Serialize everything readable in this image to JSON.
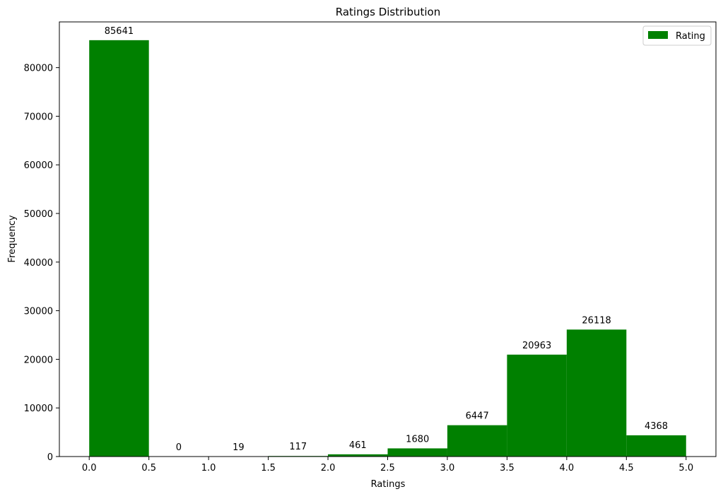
{
  "chart_data": {
    "type": "bar",
    "title": "Ratings Distribution",
    "xlabel": "Ratings",
    "ylabel": "Frequency",
    "bins": [
      {
        "start": 0.0,
        "end": 0.5,
        "value": 85641,
        "label": "85641"
      },
      {
        "start": 0.5,
        "end": 1.0,
        "value": 0,
        "label": "0"
      },
      {
        "start": 1.0,
        "end": 1.5,
        "value": 19,
        "label": "19"
      },
      {
        "start": 1.5,
        "end": 2.0,
        "value": 117,
        "label": "117"
      },
      {
        "start": 2.0,
        "end": 2.5,
        "value": 461,
        "label": "461"
      },
      {
        "start": 2.5,
        "end": 3.0,
        "value": 1680,
        "label": "1680"
      },
      {
        "start": 3.0,
        "end": 3.5,
        "value": 6447,
        "label": "6447"
      },
      {
        "start": 3.5,
        "end": 4.0,
        "value": 20963,
        "label": "20963"
      },
      {
        "start": 4.0,
        "end": 4.5,
        "value": 26118,
        "label": "26118"
      },
      {
        "start": 4.5,
        "end": 5.0,
        "value": 4368,
        "label": "4368"
      }
    ],
    "xlim": [
      -0.25,
      5.25
    ],
    "ylim": [
      0,
      89400
    ],
    "xticks": [
      0.0,
      0.5,
      1.0,
      1.5,
      2.0,
      2.5,
      3.0,
      3.5,
      4.0,
      4.5,
      5.0
    ],
    "xtick_labels": [
      "0.0",
      "0.5",
      "1.0",
      "1.5",
      "2.0",
      "2.5",
      "3.0",
      "3.5",
      "4.0",
      "4.5",
      "5.0"
    ],
    "yticks": [
      0,
      10000,
      20000,
      30000,
      40000,
      50000,
      60000,
      70000,
      80000
    ],
    "ytick_labels": [
      "0",
      "10000",
      "20000",
      "30000",
      "40000",
      "50000",
      "60000",
      "70000",
      "80000"
    ],
    "legend": {
      "label": "Rating",
      "position": "top-right"
    },
    "grid": false,
    "colors": {
      "bar": "#008000",
      "axis": "#000000"
    }
  }
}
